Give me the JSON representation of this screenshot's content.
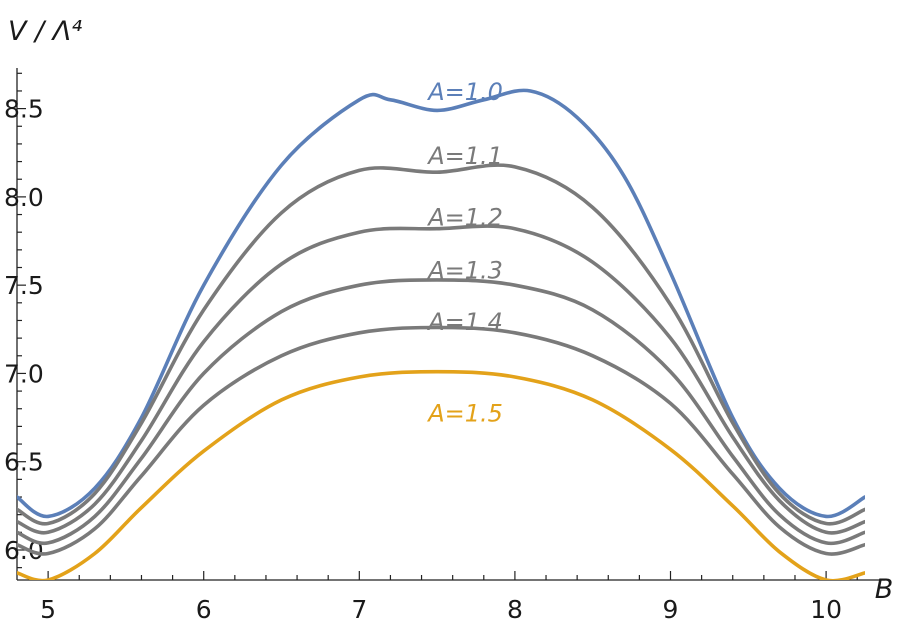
{
  "chart_data": {
    "type": "line",
    "title": "",
    "xlabel": "B",
    "ylabel": "V / Λ⁴",
    "xlim": [
      4.8,
      10.25
    ],
    "ylim": [
      5.83,
      8.73
    ],
    "x_ticks": [
      "5",
      "6",
      "7",
      "8",
      "9",
      "10"
    ],
    "y_ticks": [
      "6.0",
      "6.5",
      "7.0",
      "7.5",
      "8.0",
      "8.5"
    ],
    "grid": false,
    "series": [
      {
        "name": "A=1.0",
        "color": "#5b7fb8",
        "x": [
          4.8,
          5.0,
          5.3,
          5.6,
          6.0,
          6.5,
          7.0,
          7.2,
          7.5,
          7.8,
          8.1,
          8.4,
          8.7,
          9.0,
          9.4,
          9.7,
          10.0,
          10.25
        ],
        "y": [
          6.3,
          6.19,
          6.35,
          6.75,
          7.5,
          8.18,
          8.55,
          8.55,
          8.49,
          8.55,
          8.6,
          8.45,
          8.12,
          7.57,
          6.75,
          6.35,
          6.19,
          6.3
        ]
      },
      {
        "name": "A=1.1",
        "color": "#7a7a7a",
        "x": [
          4.8,
          5.0,
          5.3,
          5.6,
          6.0,
          6.5,
          7.0,
          7.5,
          8.0,
          8.5,
          9.0,
          9.4,
          9.7,
          10.0,
          10.25
        ],
        "y": [
          6.23,
          6.15,
          6.32,
          6.72,
          7.36,
          7.91,
          8.15,
          8.14,
          8.17,
          7.94,
          7.39,
          6.72,
          6.32,
          6.15,
          6.23
        ]
      },
      {
        "name": "A=1.2",
        "color": "#7a7a7a",
        "x": [
          4.8,
          5.0,
          5.3,
          5.6,
          6.0,
          6.5,
          7.0,
          7.5,
          8.0,
          8.5,
          9.0,
          9.4,
          9.7,
          10.0,
          10.25
        ],
        "y": [
          6.16,
          6.1,
          6.26,
          6.62,
          7.18,
          7.62,
          7.8,
          7.82,
          7.82,
          7.63,
          7.2,
          6.64,
          6.28,
          6.1,
          6.16
        ]
      },
      {
        "name": "A=1.3",
        "color": "#7a7a7a",
        "x": [
          4.8,
          5.0,
          5.3,
          5.6,
          6.0,
          6.5,
          7.0,
          7.5,
          8.0,
          8.5,
          9.0,
          9.4,
          9.7,
          10.0,
          10.25
        ],
        "y": [
          6.1,
          6.04,
          6.19,
          6.52,
          7.0,
          7.35,
          7.5,
          7.53,
          7.5,
          7.36,
          7.01,
          6.53,
          6.2,
          6.04,
          6.1
        ]
      },
      {
        "name": "A=1.4",
        "color": "#7a7a7a",
        "x": [
          4.8,
          5.0,
          5.3,
          5.6,
          6.0,
          6.5,
          7.0,
          7.5,
          8.0,
          8.5,
          9.0,
          9.4,
          9.7,
          10.0,
          10.25
        ],
        "y": [
          6.03,
          5.98,
          6.12,
          6.42,
          6.82,
          7.1,
          7.23,
          7.26,
          7.23,
          7.1,
          6.83,
          6.43,
          6.13,
          5.98,
          6.03
        ]
      },
      {
        "name": "A=1.5",
        "color": "#e3a21a",
        "x": [
          4.8,
          5.0,
          5.3,
          5.6,
          6.0,
          6.5,
          7.0,
          7.5,
          8.0,
          8.5,
          9.0,
          9.4,
          9.7,
          10.0,
          10.25
        ],
        "y": [
          5.87,
          5.83,
          5.98,
          6.24,
          6.56,
          6.85,
          6.98,
          7.01,
          6.98,
          6.85,
          6.57,
          6.25,
          5.99,
          5.83,
          5.87
        ]
      }
    ],
    "labels": [
      {
        "text": "A=1.0",
        "x": 7.85,
        "y": 8.57,
        "color": "#5b7fb8"
      },
      {
        "text": "A=1.1",
        "x": 7.85,
        "y": 8.21,
        "color": "#7a7a7a"
      },
      {
        "text": "A=1.2",
        "x": 7.85,
        "y": 7.86,
        "color": "#7a7a7a"
      },
      {
        "text": "A=1.3",
        "x": 7.85,
        "y": 7.56,
        "color": "#7a7a7a"
      },
      {
        "text": "A=1.4",
        "x": 7.85,
        "y": 7.27,
        "color": "#7a7a7a"
      },
      {
        "text": "A=1.5",
        "x": 7.85,
        "y": 6.75,
        "color": "#e3a21a"
      }
    ]
  }
}
